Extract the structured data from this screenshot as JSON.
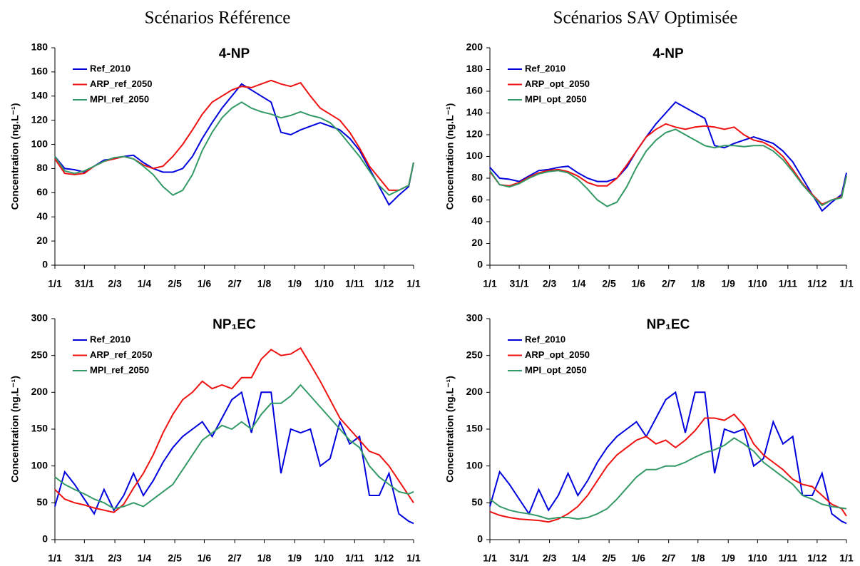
{
  "column_titles": [
    "Scénarios Référence",
    "Scénarios SAV Optimisée"
  ],
  "chart_data": [
    {
      "type": "line",
      "title": "4-NP",
      "y_label": "Concentration (ng.L⁻¹)",
      "legend": "top-left",
      "xlim": [
        0,
        365
      ],
      "xticks": [
        {
          "value": 0,
          "label": "1/1"
        },
        {
          "value": 30,
          "label": "31/1"
        },
        {
          "value": 61,
          "label": "2/3"
        },
        {
          "value": 91,
          "label": "1/4"
        },
        {
          "value": 122,
          "label": "2/5"
        },
        {
          "value": 152,
          "label": "1/6"
        },
        {
          "value": 183,
          "label": "2/7"
        },
        {
          "value": 213,
          "label": "1/8"
        },
        {
          "value": 244,
          "label": "1/9"
        },
        {
          "value": 274,
          "label": "1/10"
        },
        {
          "value": 305,
          "label": "1/11"
        },
        {
          "value": 335,
          "label": "1/12"
        },
        {
          "value": 365,
          "label": "1/1"
        }
      ],
      "ylim": [
        0,
        180
      ],
      "yticks": [
        0,
        20,
        40,
        60,
        80,
        100,
        120,
        140,
        160,
        180
      ],
      "x": [
        0,
        10,
        20,
        30,
        40,
        50,
        60,
        70,
        80,
        90,
        100,
        110,
        120,
        130,
        140,
        150,
        160,
        170,
        180,
        190,
        200,
        210,
        220,
        230,
        240,
        250,
        260,
        270,
        280,
        290,
        300,
        310,
        320,
        330,
        340,
        350,
        360,
        365
      ],
      "series": [
        {
          "name": "Ref_2010",
          "color": "#0000dd",
          "values": [
            90,
            80,
            79,
            77,
            82,
            87,
            88,
            90,
            91,
            85,
            80,
            77,
            77,
            80,
            90,
            105,
            118,
            130,
            140,
            150,
            145,
            140,
            135,
            110,
            108,
            112,
            115,
            118,
            115,
            112,
            105,
            95,
            80,
            65,
            50,
            58,
            65,
            85
          ]
        },
        {
          "name": "ARP_ref_2050",
          "color": "#ee1111",
          "values": [
            88,
            76,
            75,
            76,
            82,
            86,
            88,
            90,
            88,
            83,
            80,
            82,
            90,
            100,
            112,
            125,
            135,
            140,
            145,
            148,
            147,
            150,
            153,
            150,
            148,
            151,
            140,
            130,
            125,
            120,
            110,
            97,
            82,
            72,
            62,
            62,
            66,
            85
          ]
        },
        {
          "name": "MPI_ref_2050",
          "color": "#339966",
          "values": [
            90,
            78,
            76,
            78,
            82,
            86,
            89,
            90,
            88,
            82,
            75,
            65,
            58,
            62,
            75,
            95,
            110,
            122,
            130,
            135,
            130,
            127,
            125,
            122,
            124,
            127,
            124,
            122,
            118,
            110,
            100,
            90,
            78,
            66,
            58,
            62,
            66,
            85
          ]
        }
      ]
    },
    {
      "type": "line",
      "title": "4-NP",
      "y_label": "Concentration (ng.L⁻¹)",
      "legend": "top-left",
      "xlim": [
        0,
        365
      ],
      "xticks": [
        {
          "value": 0,
          "label": "1/1"
        },
        {
          "value": 30,
          "label": "31/1"
        },
        {
          "value": 61,
          "label": "2/3"
        },
        {
          "value": 91,
          "label": "1/4"
        },
        {
          "value": 122,
          "label": "2/5"
        },
        {
          "value": 152,
          "label": "1/6"
        },
        {
          "value": 183,
          "label": "2/7"
        },
        {
          "value": 213,
          "label": "1/8"
        },
        {
          "value": 244,
          "label": "1/9"
        },
        {
          "value": 274,
          "label": "1/10"
        },
        {
          "value": 305,
          "label": "1/11"
        },
        {
          "value": 335,
          "label": "1/12"
        },
        {
          "value": 365,
          "label": "1/1"
        }
      ],
      "ylim": [
        0,
        200
      ],
      "yticks": [
        0,
        20,
        40,
        60,
        80,
        100,
        120,
        140,
        160,
        180,
        200
      ],
      "x": [
        0,
        10,
        20,
        30,
        40,
        50,
        60,
        70,
        80,
        90,
        100,
        110,
        120,
        130,
        140,
        150,
        160,
        170,
        180,
        190,
        200,
        210,
        220,
        230,
        240,
        250,
        260,
        270,
        280,
        290,
        300,
        310,
        320,
        330,
        340,
        350,
        360,
        365
      ],
      "series": [
        {
          "name": "Ref_2010",
          "color": "#0000dd",
          "values": [
            90,
            80,
            79,
            77,
            82,
            87,
            88,
            90,
            91,
            85,
            80,
            77,
            77,
            80,
            90,
            105,
            118,
            130,
            140,
            150,
            145,
            140,
            135,
            110,
            108,
            112,
            115,
            118,
            115,
            112,
            105,
            95,
            80,
            65,
            50,
            58,
            65,
            85
          ]
        },
        {
          "name": "ARP_opt_2050",
          "color": "#ee1111",
          "values": [
            86,
            74,
            73,
            76,
            81,
            85,
            87,
            88,
            86,
            82,
            76,
            73,
            73,
            80,
            92,
            105,
            118,
            125,
            130,
            127,
            125,
            127,
            128,
            127,
            125,
            127,
            120,
            115,
            113,
            108,
            100,
            88,
            75,
            65,
            56,
            60,
            63,
            82
          ]
        },
        {
          "name": "MPI_opt_2050",
          "color": "#339966",
          "values": [
            87,
            74,
            72,
            75,
            80,
            84,
            86,
            87,
            85,
            79,
            70,
            60,
            54,
            58,
            72,
            90,
            105,
            115,
            122,
            125,
            120,
            115,
            110,
            108,
            110,
            110,
            109,
            110,
            110,
            105,
            97,
            86,
            74,
            64,
            55,
            60,
            62,
            82
          ]
        }
      ]
    },
    {
      "type": "line",
      "title": "NP₁EC",
      "y_label": "Concentration (ng.L⁻¹)",
      "legend": "top-left",
      "xlim": [
        0,
        365
      ],
      "xticks": [
        {
          "value": 0,
          "label": "1/1"
        },
        {
          "value": 30,
          "label": "31/1"
        },
        {
          "value": 61,
          "label": "2/3"
        },
        {
          "value": 91,
          "label": "1/4"
        },
        {
          "value": 122,
          "label": "2/5"
        },
        {
          "value": 152,
          "label": "1/6"
        },
        {
          "value": 183,
          "label": "2/7"
        },
        {
          "value": 213,
          "label": "1/8"
        },
        {
          "value": 244,
          "label": "1/9"
        },
        {
          "value": 274,
          "label": "1/10"
        },
        {
          "value": 305,
          "label": "1/11"
        },
        {
          "value": 335,
          "label": "1/12"
        },
        {
          "value": 365,
          "label": "1/1"
        }
      ],
      "ylim": [
        0,
        300
      ],
      "yticks": [
        0,
        50,
        100,
        150,
        200,
        250,
        300
      ],
      "x": [
        0,
        10,
        20,
        30,
        40,
        50,
        60,
        70,
        80,
        90,
        100,
        110,
        120,
        130,
        140,
        150,
        160,
        170,
        180,
        190,
        200,
        210,
        220,
        230,
        240,
        250,
        260,
        270,
        280,
        290,
        300,
        310,
        320,
        330,
        340,
        350,
        360,
        365
      ],
      "series": [
        {
          "name": "Ref_2010",
          "color": "#0000dd",
          "values": [
            45,
            92,
            75,
            55,
            35,
            68,
            40,
            60,
            90,
            60,
            80,
            105,
            125,
            140,
            150,
            160,
            140,
            165,
            190,
            200,
            145,
            200,
            200,
            90,
            150,
            145,
            150,
            100,
            110,
            160,
            130,
            140,
            60,
            60,
            90,
            35,
            25,
            22
          ]
        },
        {
          "name": "ARP_ref_2050",
          "color": "#ee1111",
          "values": [
            68,
            55,
            50,
            47,
            43,
            40,
            37,
            48,
            70,
            90,
            115,
            145,
            170,
            190,
            200,
            215,
            205,
            210,
            205,
            220,
            220,
            245,
            258,
            250,
            252,
            260,
            238,
            215,
            190,
            165,
            150,
            135,
            120,
            115,
            100,
            80,
            60,
            50
          ]
        },
        {
          "name": "MPI_ref_2050",
          "color": "#339966",
          "values": [
            85,
            75,
            68,
            62,
            55,
            50,
            42,
            45,
            50,
            45,
            55,
            65,
            75,
            95,
            115,
            135,
            145,
            155,
            150,
            160,
            150,
            170,
            185,
            185,
            195,
            210,
            195,
            180,
            165,
            150,
            135,
            125,
            100,
            85,
            75,
            65,
            62,
            65
          ]
        }
      ]
    },
    {
      "type": "line",
      "title": "NP₁EC",
      "y_label": "Concentration (ng.L⁻¹)",
      "legend": "top-left",
      "xlim": [
        0,
        365
      ],
      "xticks": [
        {
          "value": 0,
          "label": "1/1"
        },
        {
          "value": 30,
          "label": "31/1"
        },
        {
          "value": 61,
          "label": "2/3"
        },
        {
          "value": 91,
          "label": "1/4"
        },
        {
          "value": 122,
          "label": "2/5"
        },
        {
          "value": 152,
          "label": "1/6"
        },
        {
          "value": 183,
          "label": "2/7"
        },
        {
          "value": 213,
          "label": "1/8"
        },
        {
          "value": 244,
          "label": "1/9"
        },
        {
          "value": 274,
          "label": "1/10"
        },
        {
          "value": 305,
          "label": "1/11"
        },
        {
          "value": 335,
          "label": "1/12"
        },
        {
          "value": 365,
          "label": "1/1"
        }
      ],
      "ylim": [
        0,
        300
      ],
      "yticks": [
        0,
        50,
        100,
        150,
        200,
        250,
        300
      ],
      "x": [
        0,
        10,
        20,
        30,
        40,
        50,
        60,
        70,
        80,
        90,
        100,
        110,
        120,
        130,
        140,
        150,
        160,
        170,
        180,
        190,
        200,
        210,
        220,
        230,
        240,
        250,
        260,
        270,
        280,
        290,
        300,
        310,
        320,
        330,
        340,
        350,
        360,
        365
      ],
      "series": [
        {
          "name": "Ref_2010",
          "color": "#0000dd",
          "values": [
            45,
            92,
            75,
            55,
            35,
            68,
            40,
            60,
            90,
            60,
            80,
            105,
            125,
            140,
            150,
            160,
            140,
            165,
            190,
            200,
            145,
            200,
            200,
            90,
            150,
            145,
            150,
            100,
            110,
            160,
            130,
            140,
            60,
            60,
            90,
            35,
            25,
            22
          ]
        },
        {
          "name": "ARP_opt_2050",
          "color": "#ee1111",
          "values": [
            38,
            33,
            30,
            28,
            27,
            26,
            24,
            28,
            35,
            45,
            60,
            80,
            100,
            115,
            125,
            135,
            140,
            130,
            135,
            125,
            135,
            148,
            165,
            165,
            162,
            170,
            155,
            130,
            115,
            105,
            95,
            82,
            75,
            72,
            60,
            48,
            42,
            32
          ]
        },
        {
          "name": "MPI_opt_2050",
          "color": "#339966",
          "values": [
            55,
            45,
            40,
            37,
            35,
            32,
            28,
            30,
            30,
            28,
            30,
            35,
            42,
            55,
            70,
            85,
            95,
            95,
            100,
            100,
            105,
            112,
            118,
            122,
            128,
            138,
            130,
            120,
            105,
            95,
            85,
            75,
            60,
            55,
            48,
            45,
            43,
            42
          ]
        }
      ]
    }
  ]
}
